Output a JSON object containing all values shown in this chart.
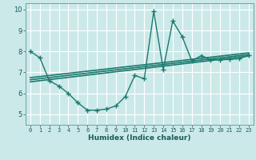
{
  "background_color": "#cce9e9",
  "grid_color": "#ffffff",
  "line_color": "#1a7a6e",
  "x_min": -0.5,
  "x_max": 23.5,
  "y_min": 4.5,
  "y_max": 10.3,
  "xlabel": "Humidex (Indice chaleur)",
  "yticks": [
    5,
    6,
    7,
    8,
    9,
    10
  ],
  "xtick_labels": [
    "0",
    "1",
    "2",
    "3",
    "4",
    "5",
    "6",
    "7",
    "8",
    "9",
    "10",
    "11",
    "12",
    "13",
    "14",
    "15",
    "16",
    "17",
    "18",
    "19",
    "20",
    "21",
    "22",
    "23"
  ],
  "xtick_positions": [
    0,
    1,
    2,
    3,
    4,
    5,
    6,
    7,
    8,
    9,
    10,
    11,
    12,
    13,
    14,
    15,
    16,
    17,
    18,
    19,
    20,
    21,
    22,
    23
  ],
  "main_series": {
    "x": [
      0,
      1,
      2,
      3,
      4,
      5,
      6,
      7,
      8,
      9,
      10,
      11,
      12,
      13,
      14,
      15,
      16,
      17,
      18,
      19,
      20,
      21,
      22,
      23
    ],
    "y": [
      8.0,
      7.7,
      6.6,
      6.35,
      6.0,
      5.55,
      5.2,
      5.2,
      5.25,
      5.4,
      5.85,
      6.85,
      6.7,
      9.9,
      7.15,
      9.45,
      8.7,
      7.55,
      7.8,
      7.6,
      7.6,
      7.62,
      7.65,
      7.82
    ]
  },
  "regression_lines": [
    {
      "x": [
        0,
        23
      ],
      "y": [
        6.55,
        7.78
      ]
    },
    {
      "x": [
        0,
        23
      ],
      "y": [
        6.65,
        7.85
      ]
    },
    {
      "x": [
        0,
        23
      ],
      "y": [
        6.75,
        7.93
      ]
    }
  ],
  "marker": "+",
  "markersize": 4,
  "linewidth": 1.0,
  "reg_linewidth": 1.2
}
